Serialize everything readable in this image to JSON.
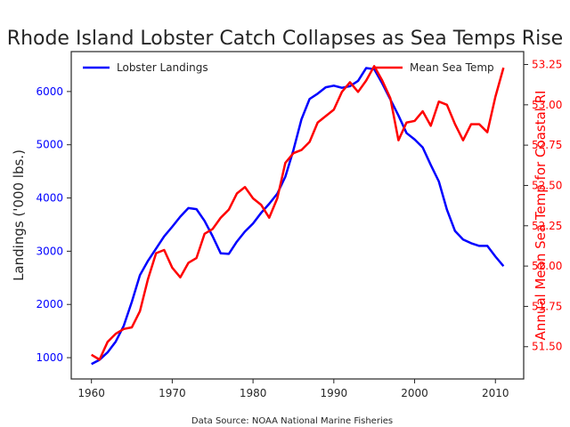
{
  "chart_data": {
    "type": "line",
    "title": "Rhode Island Lobster Catch Collapses as Sea Temps Rise",
    "footnote": "Data Source: NOAA National Marine Fisheries",
    "xlabel": "",
    "ylabel_left": "Landings ('000 lbs.)",
    "ylabel_right": "Annual Mean Sea Temp for Coastal RI",
    "xlim": [
      1957.5,
      2013.5
    ],
    "ylim_left": [
      600,
      6750
    ],
    "ylim_right": [
      51.3,
      53.33
    ],
    "x_ticks": [
      1960,
      1970,
      1980,
      1990,
      2000,
      2010
    ],
    "y_ticks_left": [
      1000,
      2000,
      3000,
      4000,
      5000,
      6000
    ],
    "y_ticks_right": [
      51.5,
      51.75,
      52.0,
      52.25,
      52.5,
      52.75,
      53.0,
      53.25
    ],
    "grid": false,
    "legend": [
      "top-left",
      "top-right"
    ],
    "x": [
      1960,
      1961,
      1962,
      1963,
      1964,
      1965,
      1966,
      1967,
      1968,
      1969,
      1970,
      1971,
      1972,
      1973,
      1974,
      1975,
      1976,
      1977,
      1978,
      1979,
      1980,
      1981,
      1982,
      1983,
      1984,
      1985,
      1986,
      1987,
      1988,
      1989,
      1990,
      1991,
      1992,
      1993,
      1994,
      1995,
      1996,
      1997,
      1998,
      1999,
      2000,
      2001,
      2002,
      2003,
      2004,
      2005,
      2006,
      2007,
      2008,
      2009,
      2010,
      2011
    ],
    "series": [
      {
        "name": "Lobster Landings",
        "axis": "left",
        "color": "#0000ff",
        "values": [
          880,
          960,
          1100,
          1300,
          1600,
          2050,
          2550,
          2820,
          3050,
          3280,
          3460,
          3650,
          3810,
          3790,
          3570,
          3280,
          2960,
          2950,
          3180,
          3370,
          3520,
          3720,
          3890,
          4080,
          4400,
          4900,
          5480,
          5860,
          5960,
          6080,
          6110,
          6070,
          6100,
          6200,
          6440,
          6420,
          6150,
          5850,
          5550,
          5220,
          5100,
          4950,
          4620,
          4310,
          3780,
          3380,
          3220,
          3150,
          3100,
          3100,
          2900,
          2720
        ]
      },
      {
        "name": "Mean Sea Temp",
        "axis": "right",
        "color": "#ff0000",
        "values": [
          51.45,
          51.42,
          51.53,
          51.58,
          51.61,
          51.62,
          51.72,
          51.92,
          52.08,
          52.1,
          51.99,
          51.93,
          52.02,
          52.05,
          52.2,
          52.23,
          52.3,
          52.35,
          52.45,
          52.49,
          52.42,
          52.38,
          52.3,
          52.42,
          52.64,
          52.7,
          52.72,
          52.77,
          52.89,
          52.93,
          52.97,
          53.08,
          53.14,
          53.08,
          53.15,
          53.24,
          53.15,
          53.04,
          52.78,
          52.89,
          52.9,
          52.96,
          52.87,
          53.02,
          53.0,
          52.88,
          52.78,
          52.88,
          52.88,
          52.83,
          53.05,
          53.23
        ]
      }
    ]
  }
}
